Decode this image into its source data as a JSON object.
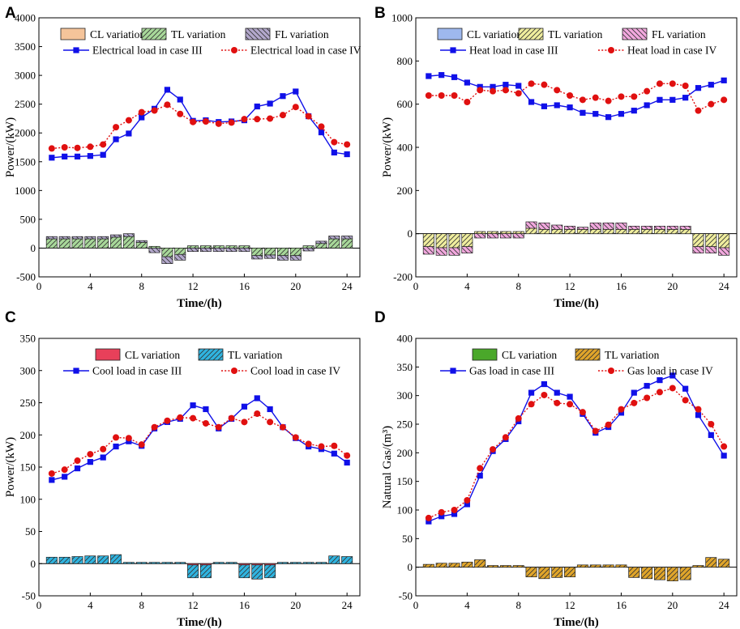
{
  "chart_data": [
    {
      "panel": "A",
      "type": "bar+line",
      "xlabel": "Time/(h)",
      "ylabel": "Power/(kW)",
      "xlim": [
        0,
        25
      ],
      "ylim": [
        -500,
        4000
      ],
      "xticks": [
        0,
        4,
        8,
        12,
        16,
        20,
        24
      ],
      "yticks": [
        -500,
        0,
        500,
        1000,
        1500,
        2000,
        2500,
        3000,
        3500,
        4000
      ],
      "xtick_labels": [
        "0",
        "4",
        "8",
        "12",
        "16",
        "20",
        "24"
      ],
      "ytick_labels": [
        "-500",
        "0",
        "500",
        "1000",
        "1500",
        "2000",
        "2500",
        "3000",
        "3500",
        "4000"
      ],
      "x": [
        1,
        2,
        3,
        4,
        5,
        6,
        7,
        8,
        9,
        10,
        11,
        12,
        13,
        14,
        15,
        16,
        17,
        18,
        19,
        20,
        21,
        22,
        23,
        24
      ],
      "bar_series": [
        {
          "name": "CL  variation",
          "color": "#f5c49a",
          "hatch": "none",
          "values": [
            0,
            0,
            0,
            0,
            0,
            0,
            0,
            0,
            0,
            0,
            0,
            0,
            0,
            0,
            0,
            0,
            0,
            0,
            0,
            0,
            0,
            0,
            0,
            0
          ]
        },
        {
          "name": "TL  variation",
          "color": "#a8d89a",
          "hatch": "/",
          "values": [
            160,
            160,
            160,
            160,
            160,
            190,
            200,
            100,
            30,
            -150,
            -110,
            40,
            40,
            40,
            40,
            40,
            -130,
            -120,
            -130,
            -130,
            40,
            80,
            160,
            160
          ]
        },
        {
          "name": "FL  variation",
          "color": "#b3a8cc",
          "hatch": "\\",
          "values": [
            40,
            40,
            40,
            40,
            40,
            40,
            50,
            30,
            -80,
            -120,
            -100,
            -60,
            -60,
            -60,
            -60,
            -60,
            -60,
            -60,
            -80,
            -80,
            -50,
            40,
            50,
            50
          ]
        }
      ],
      "line_series": [
        {
          "name": "Electrical load in case III",
          "color": "#1010e8",
          "style": "solid",
          "marker": "square",
          "values": [
            1570,
            1590,
            1590,
            1600,
            1620,
            1890,
            1990,
            2270,
            2420,
            2750,
            2580,
            2210,
            2220,
            2190,
            2200,
            2220,
            2460,
            2510,
            2640,
            2720,
            2290,
            2010,
            1660,
            1630
          ]
        },
        {
          "name": "Electrical load in case IV",
          "color": "#e01010",
          "style": "dotted",
          "marker": "circle",
          "values": [
            1730,
            1750,
            1740,
            1760,
            1800,
            2100,
            2220,
            2360,
            2390,
            2490,
            2330,
            2190,
            2200,
            2160,
            2180,
            2240,
            2240,
            2250,
            2310,
            2450,
            2290,
            2110,
            1840,
            1800
          ]
        }
      ],
      "legend_order": [
        "CL  variation",
        "TL  variation",
        "FL  variation",
        "Electrical load in case III",
        "Electrical load in case IV"
      ]
    },
    {
      "panel": "B",
      "type": "bar+line",
      "xlabel": "Time/(h)",
      "ylabel": "Power/(kW)",
      "xlim": [
        0,
        25
      ],
      "ylim": [
        -200,
        1000
      ],
      "xticks": [
        0,
        4,
        8,
        12,
        16,
        20,
        24
      ],
      "yticks": [
        -200,
        0,
        200,
        400,
        600,
        800,
        1000
      ],
      "xtick_labels": [
        "0",
        "4",
        "8",
        "12",
        "16",
        "20",
        "24"
      ],
      "ytick_labels": [
        "-200",
        "0",
        "200",
        "400",
        "600",
        "800",
        "1000"
      ],
      "x": [
        1,
        2,
        3,
        4,
        5,
        6,
        7,
        8,
        9,
        10,
        11,
        12,
        13,
        14,
        15,
        16,
        17,
        18,
        19,
        20,
        21,
        22,
        23,
        24
      ],
      "bar_series": [
        {
          "name": "CL  variation",
          "color": "#9eb8ee",
          "hatch": "none",
          "values": [
            0,
            0,
            0,
            0,
            0,
            0,
            0,
            0,
            0,
            0,
            0,
            0,
            0,
            0,
            0,
            0,
            0,
            0,
            0,
            0,
            0,
            0,
            0,
            0
          ]
        },
        {
          "name": "TL  variation",
          "color": "#f0ee9e",
          "hatch": "/",
          "values": [
            -60,
            -65,
            -65,
            -60,
            10,
            10,
            10,
            10,
            25,
            20,
            20,
            20,
            20,
            20,
            20,
            20,
            20,
            20,
            20,
            20,
            20,
            -60,
            -60,
            -65
          ]
        },
        {
          "name": "FL  variation",
          "color": "#f2a8de",
          "hatch": "\\",
          "values": [
            -35,
            -35,
            -35,
            -30,
            -20,
            -20,
            -20,
            -20,
            30,
            30,
            20,
            15,
            10,
            30,
            30,
            30,
            15,
            15,
            15,
            15,
            15,
            -30,
            -30,
            -35
          ]
        }
      ],
      "line_series": [
        {
          "name": "Heat load  in case III",
          "color": "#1010e8",
          "style": "solid",
          "marker": "square",
          "values": [
            730,
            735,
            725,
            700,
            680,
            680,
            690,
            685,
            610,
            590,
            595,
            585,
            560,
            555,
            540,
            555,
            570,
            595,
            620,
            620,
            630,
            675,
            690,
            710
          ]
        },
        {
          "name": "Heat load  in case IV",
          "color": "#e01010",
          "style": "dotted",
          "marker": "circle",
          "values": [
            640,
            640,
            640,
            610,
            665,
            660,
            665,
            650,
            695,
            690,
            665,
            640,
            620,
            630,
            615,
            635,
            635,
            660,
            695,
            695,
            685,
            570,
            600,
            620
          ]
        }
      ],
      "legend_order": [
        "CL  variation",
        "TL  variation",
        "FL  variation",
        "Heat load  in case III",
        "Heat load  in case IV"
      ]
    },
    {
      "panel": "C",
      "type": "bar+line",
      "xlabel": "Time/(h)",
      "ylabel": "Power/(kW)",
      "xlim": [
        0,
        25
      ],
      "ylim": [
        -50,
        350
      ],
      "xticks": [
        0,
        4,
        8,
        12,
        16,
        20,
        24
      ],
      "yticks": [
        -50,
        0,
        50,
        100,
        150,
        200,
        250,
        300,
        350
      ],
      "xtick_labels": [
        "0",
        "4",
        "8",
        "12",
        "16",
        "20",
        "24"
      ],
      "ytick_labels": [
        "-50",
        "0",
        "50",
        "100",
        "150",
        "200",
        "250",
        "300",
        "350"
      ],
      "x": [
        1,
        2,
        3,
        4,
        5,
        6,
        7,
        8,
        9,
        10,
        11,
        12,
        13,
        14,
        15,
        16,
        17,
        18,
        19,
        20,
        21,
        22,
        23,
        24
      ],
      "bar_series": [
        {
          "name": "CL variation",
          "color": "#e8405a",
          "hatch": "none",
          "values": [
            0,
            0,
            0,
            0,
            0,
            0,
            0,
            0,
            0,
            0,
            0,
            -2,
            -2,
            0,
            0,
            -2,
            -2,
            -2,
            0,
            0,
            0,
            0,
            0,
            0
          ]
        },
        {
          "name": "TL variation",
          "color": "#2fb4e0",
          "hatch": "/",
          "values": [
            10,
            10,
            11,
            12,
            12,
            14,
            2,
            2,
            2,
            2,
            2,
            -20,
            -20,
            2,
            2,
            -20,
            -22,
            -20,
            2,
            2,
            2,
            2,
            12,
            11
          ]
        }
      ],
      "line_series": [
        {
          "name": "Cool load in case III",
          "color": "#1010e8",
          "style": "solid",
          "marker": "square",
          "values": [
            130,
            135,
            148,
            158,
            165,
            182,
            190,
            183,
            210,
            220,
            225,
            246,
            240,
            210,
            225,
            244,
            257,
            240,
            212,
            195,
            182,
            178,
            171,
            157
          ]
        },
        {
          "name": "Cool load in case IV",
          "color": "#e01010",
          "style": "dotted",
          "marker": "circle",
          "values": [
            140,
            146,
            160,
            170,
            178,
            196,
            195,
            185,
            212,
            222,
            227,
            226,
            218,
            212,
            226,
            220,
            233,
            220,
            212,
            196,
            186,
            182,
            183,
            168
          ]
        }
      ],
      "legend_order": [
        "CL variation",
        "TL variation",
        "Cool load in case III",
        "Cool load in case IV"
      ]
    },
    {
      "panel": "D",
      "type": "bar+line",
      "xlabel": "Time/(h)",
      "ylabel": "Natural Gas/(m³)",
      "xlim": [
        0,
        25
      ],
      "ylim": [
        -50,
        400
      ],
      "xticks": [
        0,
        4,
        8,
        12,
        16,
        20,
        24
      ],
      "yticks": [
        -50,
        0,
        50,
        100,
        150,
        200,
        250,
        300,
        350,
        400
      ],
      "xtick_labels": [
        "0",
        "4",
        "8",
        "12",
        "16",
        "20",
        "24"
      ],
      "ytick_labels": [
        "-50",
        "0",
        "50",
        "100",
        "150",
        "200",
        "250",
        "300",
        "350",
        "400"
      ],
      "x": [
        1,
        2,
        3,
        4,
        5,
        6,
        7,
        8,
        9,
        10,
        11,
        12,
        13,
        14,
        15,
        16,
        17,
        18,
        19,
        20,
        21,
        22,
        23,
        24
      ],
      "bar_series": [
        {
          "name": "CL  variation",
          "color": "#4aa82a",
          "hatch": "none",
          "values": [
            0,
            0,
            0,
            0,
            0,
            0,
            0,
            0,
            0,
            0,
            0,
            0,
            0,
            0,
            0,
            0,
            0,
            0,
            0,
            0,
            0,
            0,
            0,
            0
          ]
        },
        {
          "name": "TL variation",
          "color": "#e0a52a",
          "hatch": "/",
          "values": [
            5,
            7,
            7,
            9,
            13,
            3,
            3,
            3,
            -17,
            -20,
            -18,
            -17,
            4,
            4,
            4,
            4,
            -18,
            -20,
            -22,
            -24,
            -22,
            3,
            17,
            14
          ]
        }
      ],
      "line_series": [
        {
          "name": "Gas load in case III",
          "color": "#1010e8",
          "style": "solid",
          "marker": "square",
          "values": [
            80,
            89,
            93,
            110,
            160,
            203,
            224,
            255,
            305,
            320,
            305,
            298,
            268,
            235,
            245,
            270,
            305,
            317,
            327,
            335,
            312,
            266,
            231,
            195
          ]
        },
        {
          "name": "Gas load in case IV",
          "color": "#e01010",
          "style": "dotted",
          "marker": "circle",
          "values": [
            86,
            96,
            100,
            117,
            173,
            206,
            227,
            260,
            285,
            301,
            287,
            285,
            271,
            238,
            249,
            276,
            287,
            296,
            306,
            313,
            292,
            276,
            250,
            211
          ]
        }
      ],
      "legend_order": [
        "CL  variation",
        "TL variation",
        "Gas load in case III",
        "Gas load in case IV"
      ]
    }
  ]
}
